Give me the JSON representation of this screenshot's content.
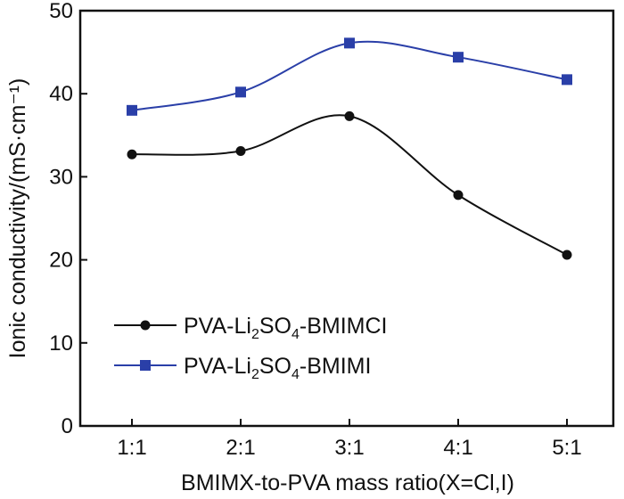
{
  "chart_data": {
    "type": "line",
    "title": "",
    "categories": [
      "1:1",
      "2:1",
      "3:1",
      "4:1",
      "5:1"
    ],
    "xlabel": "BMIMX-to-PVA mass ratio(X=Cl,I)",
    "ylabel": "Ionic conductivity/(mS·cm⁻¹)",
    "ylim": [
      0,
      50
    ],
    "yticks": [
      "0",
      "10",
      "20",
      "30",
      "40",
      "50"
    ],
    "grid": false,
    "legend_position": "lower-left",
    "series": [
      {
        "name": "PVA-Li2SO4-BMIMCl",
        "label_main": "PVA-Li",
        "label_sub1": "2",
        "label_mid": "SO",
        "label_sub2": "4",
        "label_tail": "-BMIMCI",
        "values": [
          32.7,
          33.1,
          37.3,
          27.8,
          20.6
        ],
        "color": "#111111",
        "marker": "circle"
      },
      {
        "name": "PVA-Li2SO4-BMIMI",
        "label_main": "PVA-Li",
        "label_sub1": "2",
        "label_mid": "SO",
        "label_sub2": "4",
        "label_tail": "-BMIMI",
        "values": [
          38.0,
          40.2,
          46.1,
          44.4,
          41.7
        ],
        "color": "#2a3fa8",
        "marker": "square"
      }
    ]
  }
}
